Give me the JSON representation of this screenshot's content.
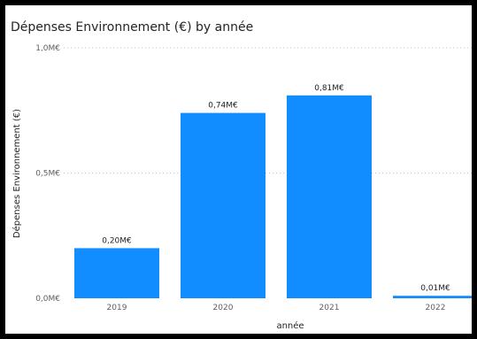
{
  "chart_data": {
    "type": "bar",
    "title": "Dépenses Environnement (€) by année",
    "xlabel": "année",
    "ylabel": "Dépenses Environnement (€)",
    "categories": [
      "2019",
      "2020",
      "2021",
      "2022"
    ],
    "values": [
      0.2,
      0.74,
      0.81,
      0.01
    ],
    "value_labels": [
      "0,20M€",
      "0,74M€",
      "0,81M€",
      "0,01M€"
    ],
    "y_ticks": [
      {
        "value": 0.0,
        "label": "0,0M€"
      },
      {
        "value": 0.5,
        "label": "0,5M€"
      },
      {
        "value": 1.0,
        "label": "1,0M€"
      }
    ],
    "ylim": [
      0,
      1.0
    ],
    "grid": true,
    "legend": "none",
    "bar_color": "#118dff"
  }
}
